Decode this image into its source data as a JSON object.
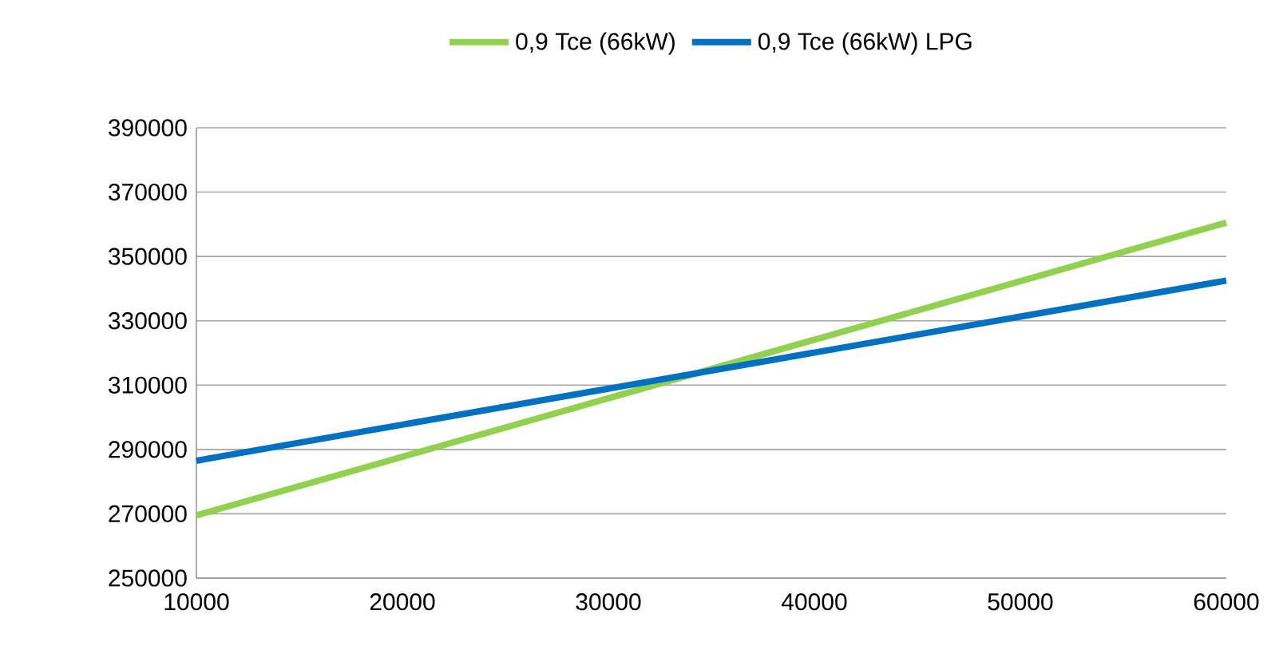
{
  "chart_data": {
    "type": "line",
    "x": [
      10000,
      60000
    ],
    "series": [
      {
        "name": "0,9 Tce (66kW)",
        "color": "#92d050",
        "values": [
          269500,
          360500
        ]
      },
      {
        "name": "0,9 Tce (66kW) LPG",
        "color": "#0070c0",
        "values": [
          286500,
          342500
        ]
      }
    ],
    "xlim": [
      10000,
      60000
    ],
    "xticks": [
      10000,
      20000,
      30000,
      40000,
      50000,
      60000
    ],
    "ylim": [
      250000,
      390000
    ],
    "yticks": [
      250000,
      270000,
      290000,
      310000,
      330000,
      350000,
      370000,
      390000
    ],
    "grid": "y",
    "legend": "top",
    "marker": "none",
    "line_style": "solid"
  }
}
